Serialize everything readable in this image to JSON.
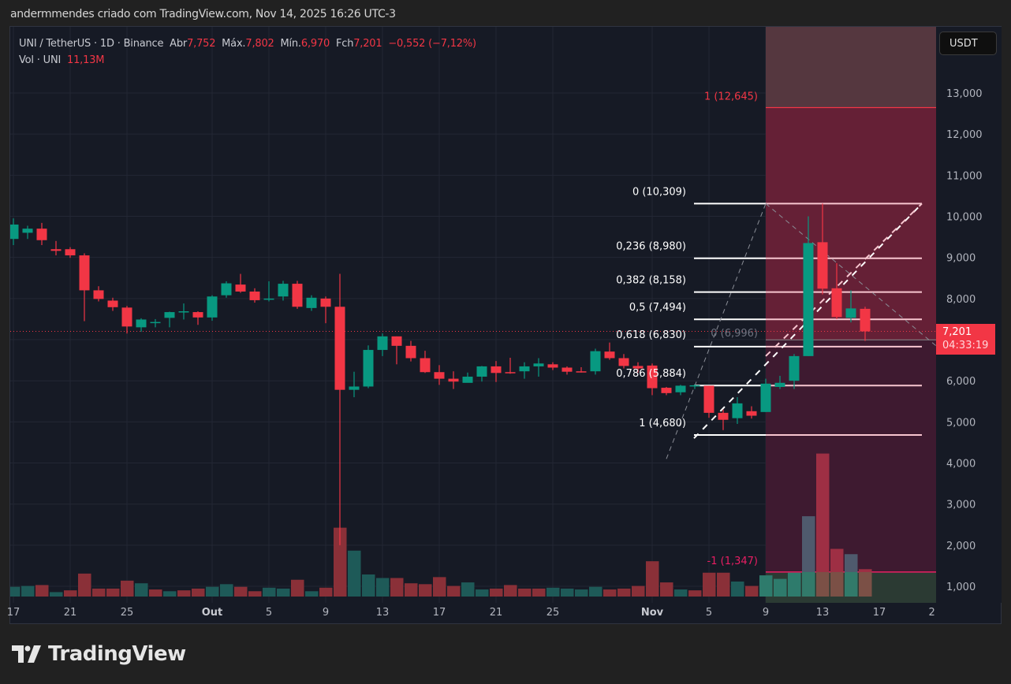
{
  "credit": "andermmendes criado com TradingView.com, Nov 14, 2025 16:26 UTC-3",
  "legend": {
    "symbol": "UNI / TetherUS · 1D · Binance",
    "open_label": "Abr",
    "open": "7,752",
    "high_label": "Máx.",
    "high": "7,802",
    "low_label": "Mín.",
    "low": "6,970",
    "close_label": "Fch",
    "close": "7,201",
    "change": "−0,552 (−7,12%)",
    "vol_label": "Vol · UNI",
    "vol": "11,13M"
  },
  "currency_button": "USDT",
  "price_tag": {
    "price": "7,201",
    "countdown": "04:33:19"
  },
  "logo": "TradingView",
  "colors": {
    "up": "#089981",
    "down": "#f23645",
    "background": "#161a25",
    "fib_zone": "#6b2236"
  },
  "chart_data": {
    "type": "candlestick",
    "title": "UNI / TetherUS · 1D · Binance",
    "ylabel": "USDT",
    "ylim": [
      0.3,
      14.0
    ],
    "y_ticks": [
      "13,000",
      "12,000",
      "11,000",
      "10,000",
      "9,000",
      "8,000",
      "7,000",
      "6,000",
      "5,000",
      "4,000",
      "3,000",
      "2,000",
      "1,000"
    ],
    "x_ticks": [
      {
        "label": "17",
        "i": 0
      },
      {
        "label": "21",
        "i": 4
      },
      {
        "label": "25",
        "i": 8
      },
      {
        "label": "Out",
        "i": 14,
        "bold": true
      },
      {
        "label": "5",
        "i": 18
      },
      {
        "label": "9",
        "i": 22
      },
      {
        "label": "13",
        "i": 26
      },
      {
        "label": "17",
        "i": 30
      },
      {
        "label": "21",
        "i": 34
      },
      {
        "label": "25",
        "i": 38
      },
      {
        "label": "Nov",
        "i": 45,
        "bold": true
      },
      {
        "label": "5",
        "i": 49
      },
      {
        "label": "9",
        "i": 53
      },
      {
        "label": "13",
        "i": 57
      },
      {
        "label": "17",
        "i": 61
      },
      {
        "label": "2",
        "i": 64.7
      }
    ],
    "candles": [
      [
        9.45,
        9.8,
        9.3,
        9.95
      ],
      [
        9.6,
        9.7,
        9.45,
        9.77
      ],
      [
        9.7,
        9.42,
        9.3,
        9.84
      ],
      [
        9.2,
        9.16,
        9.05,
        9.4
      ],
      [
        9.2,
        9.05,
        8.99,
        9.25
      ],
      [
        9.05,
        8.2,
        7.45,
        9.1
      ],
      [
        8.2,
        7.99,
        7.93,
        8.3
      ],
      [
        7.95,
        7.79,
        7.7,
        8.02
      ],
      [
        7.78,
        7.32,
        7.15,
        7.82
      ],
      [
        7.3,
        7.49,
        7.19,
        7.52
      ],
      [
        7.41,
        7.43,
        7.3,
        7.5
      ],
      [
        7.53,
        7.67,
        7.3,
        7.68
      ],
      [
        7.68,
        7.69,
        7.49,
        7.88
      ],
      [
        7.67,
        7.54,
        7.36,
        7.69
      ],
      [
        7.54,
        8.05,
        7.46,
        8.08
      ],
      [
        8.08,
        8.37,
        8.02,
        8.42
      ],
      [
        8.34,
        8.17,
        8.14,
        8.6
      ],
      [
        8.17,
        7.96,
        7.9,
        8.25
      ],
      [
        7.97,
        8.0,
        7.93,
        8.42
      ],
      [
        8.05,
        8.36,
        7.95,
        8.43
      ],
      [
        8.36,
        7.8,
        7.75,
        8.43
      ],
      [
        7.77,
        8.02,
        7.7,
        8.08
      ],
      [
        8.0,
        7.8,
        7.4,
        8.05
      ],
      [
        7.8,
        5.78,
        2.0,
        8.6
      ],
      [
        5.78,
        5.86,
        5.6,
        6.22
      ],
      [
        5.86,
        6.75,
        5.82,
        6.86
      ],
      [
        6.75,
        7.08,
        6.6,
        7.15
      ],
      [
        7.08,
        6.85,
        6.4,
        7.08
      ],
      [
        6.85,
        6.55,
        6.47,
        6.97
      ],
      [
        6.55,
        6.21,
        6.19,
        6.73
      ],
      [
        6.21,
        6.05,
        5.9,
        6.38
      ],
      [
        6.05,
        5.98,
        5.8,
        6.23
      ],
      [
        5.95,
        6.1,
        5.98,
        6.2
      ],
      [
        6.1,
        6.35,
        5.98,
        6.36
      ],
      [
        6.35,
        6.19,
        5.97,
        6.48
      ],
      [
        6.21,
        6.2,
        6.17,
        6.56
      ],
      [
        6.23,
        6.35,
        6.05,
        6.45
      ],
      [
        6.35,
        6.42,
        6.1,
        6.55
      ],
      [
        6.4,
        6.32,
        6.26,
        6.45
      ],
      [
        6.32,
        6.22,
        6.15,
        6.35
      ],
      [
        6.23,
        6.22,
        6.2,
        6.33
      ],
      [
        6.23,
        6.72,
        6.15,
        6.78
      ],
      [
        6.71,
        6.55,
        6.51,
        6.93
      ],
      [
        6.55,
        6.36,
        6.3,
        6.65
      ],
      [
        6.36,
        6.3,
        6.2,
        6.45
      ],
      [
        6.37,
        5.82,
        5.65,
        6.42
      ],
      [
        5.83,
        5.7,
        5.65,
        5.85
      ],
      [
        5.72,
        5.88,
        5.65,
        5.9
      ],
      [
        5.88,
        5.89,
        5.8,
        5.91
      ],
      [
        5.88,
        5.22,
        5.1,
        5.88
      ],
      [
        5.22,
        5.05,
        4.8,
        5.3
      ],
      [
        5.09,
        5.45,
        4.95,
        5.6
      ],
      [
        5.26,
        5.15,
        5.08,
        5.38
      ],
      [
        5.24,
        5.93,
        5.24,
        6.05
      ],
      [
        5.85,
        5.95,
        5.8,
        6.12
      ],
      [
        6.0,
        6.6,
        5.8,
        6.65
      ],
      [
        6.6,
        9.35,
        6.6,
        10.0
      ],
      [
        9.37,
        8.24,
        8.1,
        10.31
      ],
      [
        8.25,
        7.55,
        7.5,
        8.86
      ],
      [
        7.53,
        7.76,
        7.42,
        8.2
      ],
      [
        7.75,
        7.2,
        6.97,
        7.8
      ]
    ],
    "candle_format": "[open, close, low, high] in thousands",
    "volumes": [
      [
        11,
        "up"
      ],
      [
        12,
        "up"
      ],
      [
        13,
        "down"
      ],
      [
        5,
        "up"
      ],
      [
        7,
        "down"
      ],
      [
        26,
        "down"
      ],
      [
        9,
        "down"
      ],
      [
        9,
        "down"
      ],
      [
        18,
        "down"
      ],
      [
        15,
        "up"
      ],
      [
        8,
        "down"
      ],
      [
        6,
        "up"
      ],
      [
        7,
        "down"
      ],
      [
        9,
        "down"
      ],
      [
        11,
        "up"
      ],
      [
        14,
        "up"
      ],
      [
        11,
        "down"
      ],
      [
        6,
        "down"
      ],
      [
        10,
        "up"
      ],
      [
        9,
        "up"
      ],
      [
        19,
        "down"
      ],
      [
        6,
        "up"
      ],
      [
        10,
        "down"
      ],
      [
        78,
        "down"
      ],
      [
        52,
        "up"
      ],
      [
        25,
        "up"
      ],
      [
        21,
        "up"
      ],
      [
        21,
        "down"
      ],
      [
        15,
        "down"
      ],
      [
        14,
        "down"
      ],
      [
        22,
        "down"
      ],
      [
        12,
        "down"
      ],
      [
        16,
        "up"
      ],
      [
        8,
        "up"
      ],
      [
        9,
        "down"
      ],
      [
        13,
        "down"
      ],
      [
        9,
        "down"
      ],
      [
        9,
        "down"
      ],
      [
        10,
        "up"
      ],
      [
        9,
        "up"
      ],
      [
        8,
        "up"
      ],
      [
        11,
        "up"
      ],
      [
        8,
        "down"
      ],
      [
        9,
        "down"
      ],
      [
        12,
        "down"
      ],
      [
        40,
        "down"
      ],
      [
        16,
        "down"
      ],
      [
        8,
        "up"
      ],
      [
        7,
        "down"
      ],
      [
        27,
        "down"
      ],
      [
        27,
        "down"
      ],
      [
        17,
        "up"
      ],
      [
        12,
        "down"
      ],
      [
        24,
        "up"
      ],
      [
        20,
        "up"
      ],
      [
        27,
        "up"
      ],
      [
        91,
        "gray"
      ],
      [
        162,
        "down"
      ],
      [
        54,
        "down"
      ],
      [
        48,
        "gray"
      ],
      [
        31,
        "down"
      ]
    ]
  },
  "fibonacci": {
    "levels": [
      {
        "label": "0 (10,309)",
        "price": 10.309
      },
      {
        "label": "0,236 (8,980)",
        "price": 8.98
      },
      {
        "label": "0,382 (8,158)",
        "price": 8.158
      },
      {
        "label": "0,5 (7,494)",
        "price": 7.494
      },
      {
        "label": "0,618 (6,830)",
        "price": 6.83
      },
      {
        "label": "0,786 (5,884)",
        "price": 5.884
      },
      {
        "label": "1 (4,680)",
        "price": 4.68
      }
    ],
    "projection": {
      "target_label": "1 (12,645)",
      "target": 12.645,
      "entry_label": "0 (6,996)",
      "entry": 6.996,
      "stop_label": "-1 (1,347)",
      "stop": 1.347
    }
  }
}
